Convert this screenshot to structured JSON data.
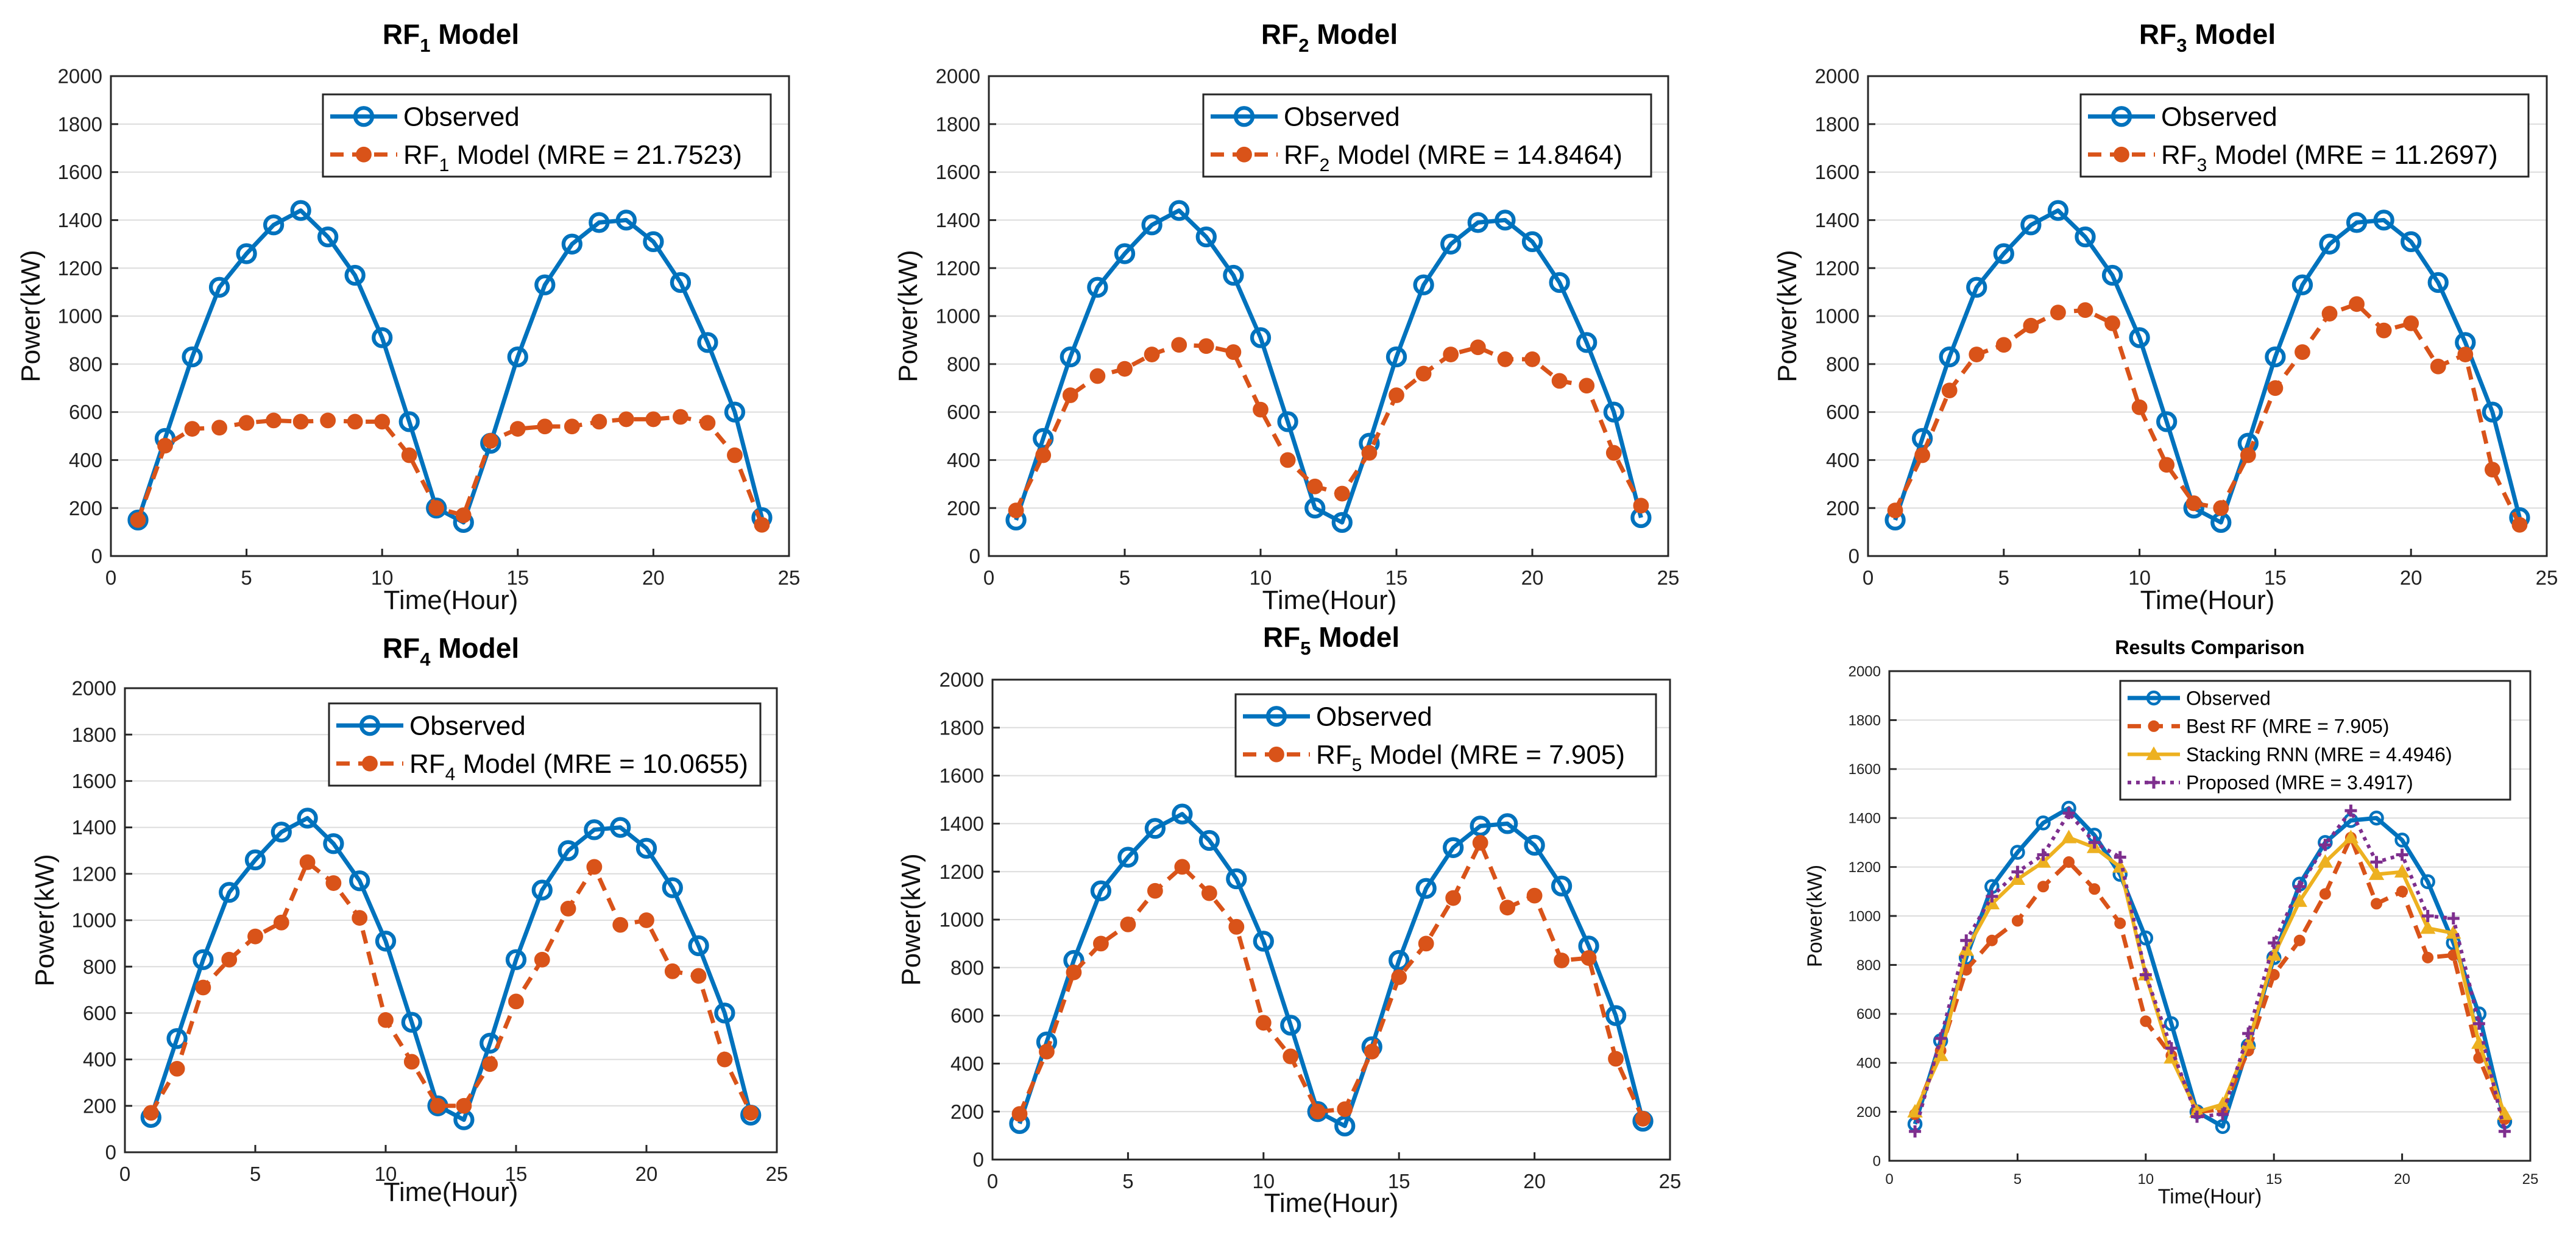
{
  "colors": {
    "observed": "#0072BD",
    "rf": "#D95319",
    "stacking": "#EDB120",
    "proposed": "#7E2F8E",
    "grid": "#DCDCDC"
  },
  "chart_data": [
    {
      "type": "line",
      "title": "RF",
      "title_sub": "1",
      "title_suffix": " Model",
      "xlabel": "Time(Hour)",
      "ylabel": "Power(kW)",
      "xlim": [
        0,
        25
      ],
      "ylim": [
        0,
        2000
      ],
      "xticks": [
        0,
        5,
        10,
        15,
        20,
        25
      ],
      "yticks": [
        0,
        200,
        400,
        600,
        800,
        1000,
        1200,
        1400,
        1600,
        1800,
        2000
      ],
      "legend_position": "top-right",
      "x": [
        1,
        2,
        3,
        4,
        5,
        6,
        7,
        8,
        9,
        10,
        11,
        12,
        13,
        14,
        15,
        16,
        17,
        18,
        19,
        20,
        21,
        22,
        23,
        24
      ],
      "series": [
        {
          "name": "Observed",
          "label_main": "Observed",
          "label_sub": "",
          "label_suffix": "",
          "style": "observed",
          "values": [
            150,
            490,
            830,
            1120,
            1260,
            1380,
            1440,
            1330,
            1170,
            910,
            560,
            200,
            140,
            470,
            830,
            1130,
            1300,
            1390,
            1400,
            1310,
            1140,
            890,
            600,
            160
          ]
        },
        {
          "name": "RF1 Model (MRE = 21.7523)",
          "label_main": "RF",
          "label_sub": "1",
          "label_suffix": " Model (MRE = 21.7523)",
          "style": "rf",
          "values": [
            150,
            460,
            530,
            535,
            555,
            565,
            560,
            565,
            560,
            560,
            420,
            200,
            170,
            480,
            530,
            540,
            540,
            560,
            570,
            570,
            580,
            555,
            420,
            130
          ]
        }
      ]
    },
    {
      "type": "line",
      "title": "RF",
      "title_sub": "2",
      "title_suffix": " Model",
      "xlabel": "Time(Hour)",
      "ylabel": "Power(kW)",
      "xlim": [
        0,
        25
      ],
      "ylim": [
        0,
        2000
      ],
      "xticks": [
        0,
        5,
        10,
        15,
        20,
        25
      ],
      "yticks": [
        0,
        200,
        400,
        600,
        800,
        1000,
        1200,
        1400,
        1600,
        1800,
        2000
      ],
      "legend_position": "top-right",
      "x": [
        1,
        2,
        3,
        4,
        5,
        6,
        7,
        8,
        9,
        10,
        11,
        12,
        13,
        14,
        15,
        16,
        17,
        18,
        19,
        20,
        21,
        22,
        23,
        24
      ],
      "series": [
        {
          "name": "Observed",
          "label_main": "Observed",
          "label_sub": "",
          "label_suffix": "",
          "style": "observed",
          "values": [
            150,
            490,
            830,
            1120,
            1260,
            1380,
            1440,
            1330,
            1170,
            910,
            560,
            200,
            140,
            470,
            830,
            1130,
            1300,
            1390,
            1400,
            1310,
            1140,
            890,
            600,
            160
          ]
        },
        {
          "name": "RF2 Model (MRE = 14.8464)",
          "label_main": "RF",
          "label_sub": "2",
          "label_suffix": " Model (MRE = 14.8464)",
          "style": "rf",
          "values": [
            190,
            420,
            670,
            750,
            780,
            840,
            880,
            875,
            850,
            610,
            400,
            290,
            260,
            430,
            670,
            760,
            840,
            870,
            820,
            820,
            730,
            710,
            430,
            210
          ]
        }
      ]
    },
    {
      "type": "line",
      "title": "RF",
      "title_sub": "3",
      "title_suffix": " Model",
      "xlabel": "Time(Hour)",
      "ylabel": "Power(kW)",
      "xlim": [
        0,
        25
      ],
      "ylim": [
        0,
        2000
      ],
      "xticks": [
        0,
        5,
        10,
        15,
        20,
        25
      ],
      "yticks": [
        0,
        200,
        400,
        600,
        800,
        1000,
        1200,
        1400,
        1600,
        1800,
        2000
      ],
      "legend_position": "top-right",
      "x": [
        1,
        2,
        3,
        4,
        5,
        6,
        7,
        8,
        9,
        10,
        11,
        12,
        13,
        14,
        15,
        16,
        17,
        18,
        19,
        20,
        21,
        22,
        23,
        24
      ],
      "series": [
        {
          "name": "Observed",
          "label_main": "Observed",
          "label_sub": "",
          "label_suffix": "",
          "style": "observed",
          "values": [
            150,
            490,
            830,
            1120,
            1260,
            1380,
            1440,
            1330,
            1170,
            910,
            560,
            200,
            140,
            470,
            830,
            1130,
            1300,
            1390,
            1400,
            1310,
            1140,
            890,
            600,
            160
          ]
        },
        {
          "name": "RF3 Model (MRE = 11.2697)",
          "label_main": "RF",
          "label_sub": "3",
          "label_suffix": " Model (MRE = 11.2697)",
          "style": "rf",
          "values": [
            190,
            420,
            690,
            840,
            880,
            960,
            1015,
            1025,
            970,
            620,
            380,
            220,
            200,
            420,
            700,
            850,
            1010,
            1050,
            940,
            970,
            790,
            840,
            360,
            130
          ]
        }
      ]
    },
    {
      "type": "line",
      "title": "RF",
      "title_sub": "4",
      "title_suffix": " Model",
      "xlabel": "Time(Hour)",
      "ylabel": "Power(kW)",
      "xlim": [
        0,
        25
      ],
      "ylim": [
        0,
        2000
      ],
      "xticks": [
        0,
        5,
        10,
        15,
        20,
        25
      ],
      "yticks": [
        0,
        200,
        400,
        600,
        800,
        1000,
        1200,
        1400,
        1600,
        1800,
        2000
      ],
      "legend_position": "top-right",
      "x": [
        1,
        2,
        3,
        4,
        5,
        6,
        7,
        8,
        9,
        10,
        11,
        12,
        13,
        14,
        15,
        16,
        17,
        18,
        19,
        20,
        21,
        22,
        23,
        24
      ],
      "series": [
        {
          "name": "Observed",
          "label_main": "Observed",
          "label_sub": "",
          "label_suffix": "",
          "style": "observed",
          "values": [
            150,
            490,
            830,
            1120,
            1260,
            1380,
            1440,
            1330,
            1170,
            910,
            560,
            200,
            140,
            470,
            830,
            1130,
            1300,
            1390,
            1400,
            1310,
            1140,
            890,
            600,
            160
          ]
        },
        {
          "name": "RF4 Model (MRE = 10.0655)",
          "label_main": "RF",
          "label_sub": "4",
          "label_suffix": " Model (MRE = 10.0655)",
          "style": "rf",
          "values": [
            170,
            360,
            710,
            830,
            930,
            990,
            1250,
            1160,
            1010,
            570,
            390,
            200,
            200,
            380,
            650,
            830,
            1050,
            1230,
            980,
            1000,
            780,
            760,
            400,
            170
          ]
        }
      ]
    },
    {
      "type": "line",
      "title": "RF",
      "title_sub": "5",
      "title_suffix": " Model",
      "xlabel": "Time(Hour)",
      "ylabel": "Power(kW)",
      "xlim": [
        0,
        25
      ],
      "ylim": [
        0,
        2000
      ],
      "xticks": [
        0,
        5,
        10,
        15,
        20,
        25
      ],
      "yticks": [
        0,
        200,
        400,
        600,
        800,
        1000,
        1200,
        1400,
        1600,
        1800,
        2000
      ],
      "legend_position": "top-right",
      "x": [
        1,
        2,
        3,
        4,
        5,
        6,
        7,
        8,
        9,
        10,
        11,
        12,
        13,
        14,
        15,
        16,
        17,
        18,
        19,
        20,
        21,
        22,
        23,
        24
      ],
      "series": [
        {
          "name": "Observed",
          "label_main": "Observed",
          "label_sub": "",
          "label_suffix": "",
          "style": "observed",
          "values": [
            150,
            490,
            830,
            1120,
            1260,
            1380,
            1440,
            1330,
            1170,
            910,
            560,
            200,
            140,
            470,
            830,
            1130,
            1300,
            1390,
            1400,
            1310,
            1140,
            890,
            600,
            160
          ]
        },
        {
          "name": "RF5 Model (MRE = 7.905)",
          "label_main": "RF",
          "label_sub": "5",
          "label_suffix": " Model (MRE = 7.905)",
          "style": "rf",
          "values": [
            190,
            450,
            780,
            900,
            980,
            1120,
            1220,
            1110,
            970,
            570,
            430,
            200,
            210,
            450,
            760,
            900,
            1090,
            1320,
            1050,
            1100,
            830,
            840,
            420,
            170
          ]
        }
      ]
    },
    {
      "type": "line",
      "title": "Results Comparison",
      "title_sub": "",
      "title_suffix": "",
      "xlabel": "Time(Hour)",
      "ylabel": "Power(kW)",
      "xlim": [
        0,
        25
      ],
      "ylim": [
        0,
        2000
      ],
      "xticks": [
        0,
        5,
        10,
        15,
        20,
        25
      ],
      "yticks": [
        0,
        200,
        400,
        600,
        800,
        1000,
        1200,
        1400,
        1600,
        1800,
        2000
      ],
      "legend_position": "top-right",
      "x": [
        1,
        2,
        3,
        4,
        5,
        6,
        7,
        8,
        9,
        10,
        11,
        12,
        13,
        14,
        15,
        16,
        17,
        18,
        19,
        20,
        21,
        22,
        23,
        24
      ],
      "series": [
        {
          "name": "Observed",
          "label_main": "Observed",
          "label_sub": "",
          "label_suffix": "",
          "style": "observed",
          "values": [
            150,
            490,
            830,
            1120,
            1260,
            1380,
            1440,
            1330,
            1170,
            910,
            560,
            200,
            140,
            470,
            830,
            1130,
            1300,
            1390,
            1400,
            1310,
            1140,
            890,
            600,
            160
          ]
        },
        {
          "name": "Best RF (MRE = 7.905)",
          "label_main": "Best RF (MRE = 7.905)",
          "label_sub": "",
          "label_suffix": "",
          "style": "rf",
          "values": [
            190,
            450,
            780,
            900,
            980,
            1120,
            1220,
            1110,
            970,
            570,
            430,
            200,
            210,
            450,
            760,
            900,
            1090,
            1320,
            1050,
            1100,
            830,
            840,
            420,
            170
          ]
        },
        {
          "name": "Stacking RNN (MRE = 4.4946)",
          "label_main": "Stacking RNN (MRE = 4.4946)",
          "label_sub": "",
          "label_suffix": "",
          "style": "stacking",
          "values": [
            200,
            430,
            860,
            1050,
            1150,
            1220,
            1320,
            1280,
            1200,
            760,
            420,
            200,
            230,
            480,
            840,
            1060,
            1220,
            1320,
            1170,
            1180,
            950,
            930,
            480,
            190
          ]
        },
        {
          "name": "Proposed (MRE = 3.4917)",
          "label_main": "Proposed (MRE = 3.4917)",
          "label_sub": "",
          "label_suffix": "",
          "style": "proposed",
          "values": [
            120,
            500,
            900,
            1080,
            1180,
            1250,
            1420,
            1300,
            1240,
            760,
            460,
            180,
            190,
            520,
            890,
            1120,
            1290,
            1430,
            1220,
            1250,
            1000,
            990,
            560,
            120
          ]
        }
      ]
    }
  ]
}
